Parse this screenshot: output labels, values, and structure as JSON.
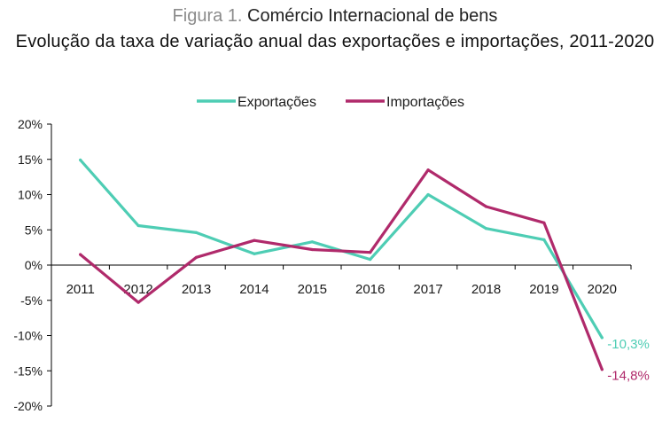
{
  "title": {
    "figure_label": "Figura 1.",
    "line1": "Comércio Internacional de bens",
    "line2": "Evolução da taxa de variação anual das exportações e importações, 2011-2020"
  },
  "colors": {
    "exportacoes": "#4ecdb4",
    "importacoes": "#b02a6b",
    "axis": "#000000",
    "text": "#1a1a1a"
  },
  "chart_data": {
    "type": "line",
    "title": "Evolução da taxa de variação anual das exportações e importações, 2011-2020",
    "xlabel": "",
    "ylabel": "",
    "categories": [
      "2011",
      "2012",
      "2013",
      "2014",
      "2015",
      "2016",
      "2017",
      "2018",
      "2019",
      "2020"
    ],
    "series": [
      {
        "name": "Exportações",
        "color": "#4ecdb4",
        "values": [
          14.9,
          5.6,
          4.6,
          1.6,
          3.3,
          0.8,
          10.0,
          5.2,
          3.6,
          -10.3
        ]
      },
      {
        "name": "Importações",
        "color": "#b02a6b",
        "values": [
          1.5,
          -5.3,
          1.1,
          3.5,
          2.2,
          1.8,
          13.5,
          8.3,
          6.0,
          -14.8
        ]
      }
    ],
    "ylim": [
      -20,
      20
    ],
    "yticks": [
      "20%",
      "15%",
      "10%",
      "5%",
      "0%",
      "-5%",
      "-10%",
      "-15%",
      "-20%"
    ],
    "ytick_values": [
      20,
      15,
      10,
      5,
      0,
      -5,
      -10,
      -15,
      -20
    ],
    "end_labels": [
      "-10,3%",
      "-14,8%"
    ],
    "legend_position": "top-center",
    "grid": false
  }
}
